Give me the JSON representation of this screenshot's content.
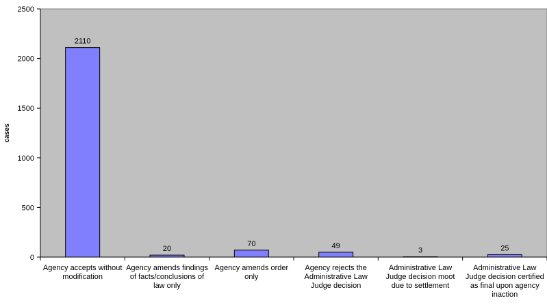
{
  "chart_data": {
    "type": "bar",
    "categories": [
      "Agency accepts without modification",
      "Agency amends findings of facts/conclusions of law only",
      "Agency amends order only",
      "Agency rejects the Administrative Law Judge decision",
      "Administrative Law Judge decision moot due to settlement",
      "Administrative Law Judge decision certified as final upon agency inaction"
    ],
    "values": [
      2110,
      20,
      70,
      49,
      3,
      25
    ],
    "data_labels": [
      "2110",
      "20",
      "70",
      "49",
      "3",
      "25"
    ],
    "ylabel": "cases",
    "xlabel": "",
    "ylim": [
      0,
      2500
    ],
    "yticks": [
      "0",
      "500",
      "1000",
      "1500",
      "2000",
      "2500"
    ],
    "grid": false,
    "legend": "none",
    "colors": {
      "plot_background": "#c0c0c0",
      "bar_fill": "#8080ff",
      "bar_stroke": "#000000"
    }
  }
}
